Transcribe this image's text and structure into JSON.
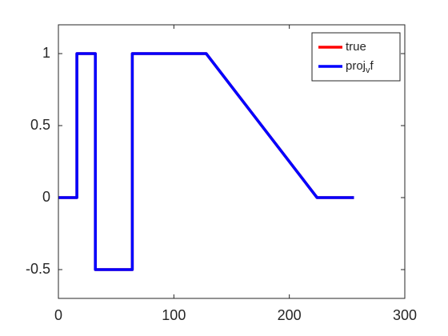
{
  "chart_data": {
    "type": "line",
    "x": [
      0,
      16,
      16,
      32,
      32,
      64,
      64,
      128,
      224,
      256
    ],
    "series": [
      {
        "name": "true",
        "color": "#ff0000",
        "values": [
          0,
          0,
          1,
          1,
          -0.5,
          -0.5,
          1,
          1,
          0,
          0
        ]
      },
      {
        "name": "proj_vf",
        "color": "#0000ff",
        "values": [
          0,
          0,
          1,
          1,
          -0.5,
          -0.5,
          1,
          1,
          0,
          0
        ]
      }
    ],
    "xlim": [
      0,
      300
    ],
    "xticks": [
      0,
      100,
      200,
      300
    ],
    "ylim": [
      -0.7,
      1.2
    ],
    "yticks": [
      -0.5,
      0,
      0.5,
      1
    ],
    "grid": false,
    "legend": "northeast"
  }
}
